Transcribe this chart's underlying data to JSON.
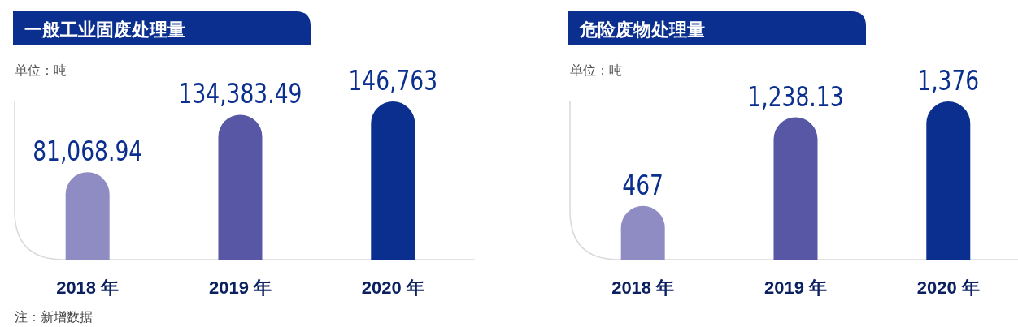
{
  "chart_data": [
    {
      "type": "bar",
      "title": "一般工业固废处理量",
      "subtitle": "单位：吨",
      "categories": [
        "2018 年",
        "2019 年",
        "2020 年"
      ],
      "values": [
        81068.94,
        134383.49,
        146763
      ],
      "colors": [
        "#8f8cc4",
        "#5757a6",
        "#0b2f8e"
      ],
      "value_labels": [
        "81,068.94",
        "134,383.49",
        "146,763"
      ],
      "annotations": [
        "注：新增数据"
      ]
    },
    {
      "type": "bar",
      "title": "危险废物处理量",
      "subtitle": "单位：吨",
      "categories": [
        "2018 年",
        "2019 年",
        "2020 年"
      ],
      "values": [
        467,
        1238.13,
        1376
      ],
      "colors": [
        "#8f8cc4",
        "#5757a6",
        "#0b2f8e"
      ],
      "value_labels": [
        "467",
        "1,238.13",
        "1,376"
      ]
    }
  ]
}
